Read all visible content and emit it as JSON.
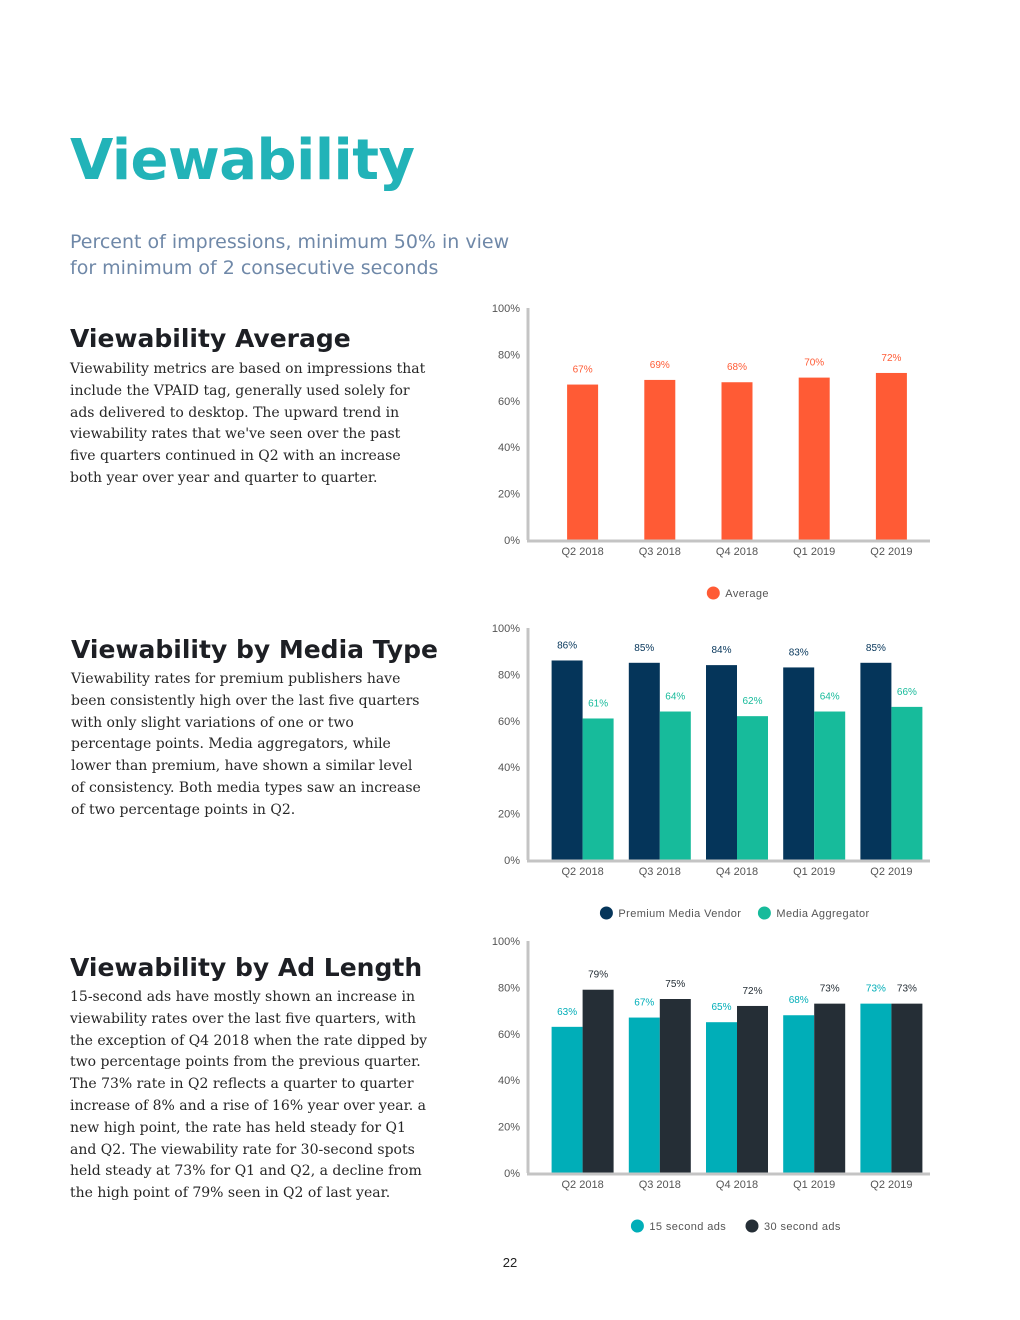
{
  "page": {
    "title": "Viewability",
    "subtitle": "Percent of impressions, minimum 50% in view for minimum of 2 consecutive seconds",
    "page_number": "22"
  },
  "sections": [
    {
      "heading": "Viewability Average",
      "body": "Viewability metrics are based on impressions that include the VPAID tag, generally used solely for ads delivered to desktop. The upward trend in viewability rates that we've seen over the past five quarters continued in Q2 with an increase both year over year and quarter to quarter."
    },
    {
      "heading": "Viewability by Media Type",
      "body": "Viewability rates for premium publishers have been consistently high over the last five quarters with only slight variations of one or two percentage points. Media aggregators, while lower than premium, have shown a similar level of consistency. Both media types saw an increase of two percentage points in Q2."
    },
    {
      "heading": "Viewability by Ad Length",
      "body": "15-second ads have mostly shown an increase in viewability rates over the last five quarters, with the exception of Q4 2018 when the rate dipped by two percentage points from the previous quarter. The 73% rate in Q2 reflects a quarter to quarter increase of 8% and a rise of 16% year over year.  a new high point, the rate has held steady for Q1 and Q2. The viewability rate for 30-second spots held steady at 73% for Q1 and Q2, a decline from the high point of 79% seen in Q2 of last year."
    }
  ],
  "chart_data": [
    {
      "type": "bar",
      "title": "",
      "xlabel": "",
      "ylabel": "",
      "categories": [
        "Q2 2018",
        "Q3 2018",
        "Q4 2018",
        "Q1 2019",
        "Q2 2019"
      ],
      "ylim": [
        0,
        100
      ],
      "y_ticks": [
        "0%",
        "20%",
        "40%",
        "60%",
        "80%",
        "100%"
      ],
      "grid": false,
      "legend_position": "bottom",
      "series": [
        {
          "name": "Average",
          "color": "#ff5b35",
          "label_color": "#ff5b35",
          "values": [
            67,
            69,
            68,
            70,
            72
          ],
          "labels": [
            "67%",
            "69%",
            "68%",
            "70%",
            "72%"
          ]
        }
      ]
    },
    {
      "type": "bar",
      "title": "",
      "xlabel": "",
      "ylabel": "",
      "categories": [
        "Q2 2018",
        "Q3 2018",
        "Q4 2018",
        "Q1 2019",
        "Q2 2019"
      ],
      "ylim": [
        0,
        100
      ],
      "y_ticks": [
        "0%",
        "20%",
        "40%",
        "60%",
        "80%",
        "100%"
      ],
      "grid": false,
      "legend_position": "bottom",
      "series": [
        {
          "name": "Premium Media Vendor",
          "color": "#05355a",
          "label_color": "#05355a",
          "values": [
            86,
            85,
            84,
            83,
            85
          ],
          "labels": [
            "86%",
            "85%",
            "84%",
            "83%",
            "85%"
          ]
        },
        {
          "name": "Media Aggregator",
          "color": "#17bb9b",
          "label_color": "#17bb9b",
          "values": [
            61,
            64,
            62,
            64,
            66
          ],
          "labels": [
            "61%",
            "64%",
            "62%",
            "64%",
            "66%"
          ]
        }
      ]
    },
    {
      "type": "bar",
      "title": "",
      "xlabel": "",
      "ylabel": "",
      "categories": [
        "Q2 2018",
        "Q3 2018",
        "Q4 2018",
        "Q1 2019",
        "Q2 2019"
      ],
      "ylim": [
        0,
        100
      ],
      "y_ticks": [
        "0%",
        "20%",
        "40%",
        "60%",
        "80%",
        "100%"
      ],
      "grid": false,
      "legend_position": "bottom",
      "series": [
        {
          "name": "15 second ads",
          "color": "#00aeb8",
          "label_color": "#00aeb8",
          "values": [
            63,
            67,
            65,
            68,
            73
          ],
          "labels": [
            "63%",
            "67%",
            "65%",
            "68%",
            "73%"
          ]
        },
        {
          "name": "30 second ads",
          "color": "#252e36",
          "label_color": "#252e36",
          "values": [
            79,
            75,
            72,
            73,
            73
          ],
          "labels": [
            "79%",
            "75%",
            "72%",
            "73%",
            "73%"
          ]
        }
      ]
    }
  ]
}
